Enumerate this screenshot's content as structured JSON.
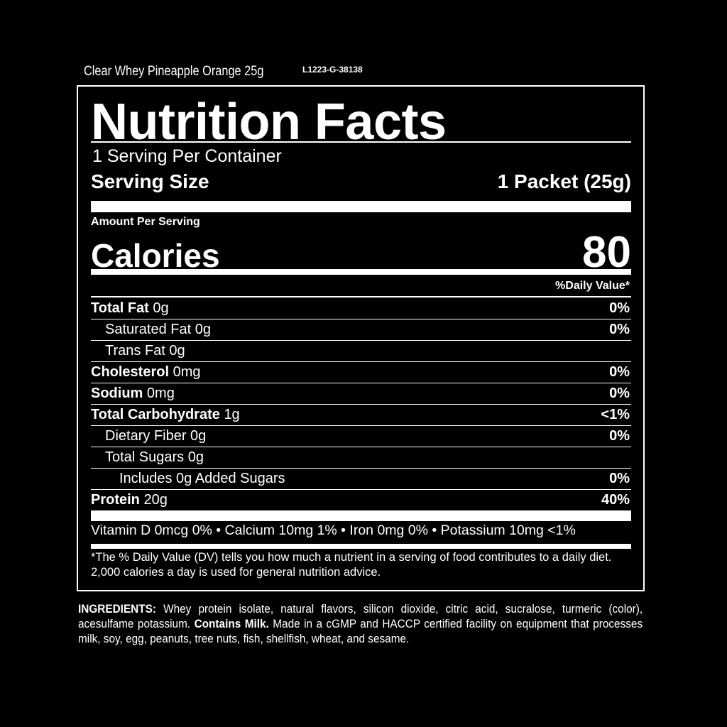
{
  "product": "Clear Whey Pineapple Orange 25g",
  "lot": "L1223-G-38138",
  "title": "Nutrition Facts",
  "servings_per_container": "1 Serving Per Container",
  "serving_size_label": "Serving Size",
  "serving_size_value": "1 Packet (25g)",
  "amount_per_serving": "Amount Per Serving",
  "calories_label": "Calories",
  "calories_value": "80",
  "daily_value_header": "%Daily Value*",
  "nutrients": [
    {
      "name": "Total Fat",
      "amount": "0g",
      "dv": "0%"
    },
    {
      "name": "Saturated Fat",
      "amount": "0g",
      "dv": "0%"
    },
    {
      "name": "Trans Fat",
      "amount": "0g",
      "dv": ""
    },
    {
      "name": "Cholesterol",
      "amount": "0mg",
      "dv": "0%"
    },
    {
      "name": "Sodium",
      "amount": "0mg",
      "dv": "0%"
    },
    {
      "name": "Total Carbohydrate",
      "amount": "1g",
      "dv": "<1%"
    },
    {
      "name": "Dietary Fiber",
      "amount": "0g",
      "dv": "0%"
    },
    {
      "name": "Total Sugars",
      "amount": "0g",
      "dv": ""
    },
    {
      "name": "Includes 0g Added Sugars",
      "amount": "",
      "dv": "0%"
    },
    {
      "name": "Protein",
      "amount": "20g",
      "dv": "40%"
    }
  ],
  "vitamins": "Vitamin D 0mcg 0% • Calcium 10mg 1% • Iron 0mg 0% • Potassium 10mg <1%",
  "footnote": "*The % Daily Value (DV) tells you how much a nutrient in a serving of food contributes to a daily diet. 2,000 calories a day is used for general nutrition advice.",
  "ingredients": {
    "label": "INGREDIENTS:",
    "text1": " Whey protein isolate, natural flavors, silicon dioxide, citric acid, sucralose, turmeric (color), acesulfame potassium. ",
    "contains": "Contains Milk.",
    "text2": " Made in a cGMP and HACCP certified facility on equipment that processes milk, soy, egg, peanuts, tree nuts, fish, shellfish, wheat, and sesame."
  }
}
